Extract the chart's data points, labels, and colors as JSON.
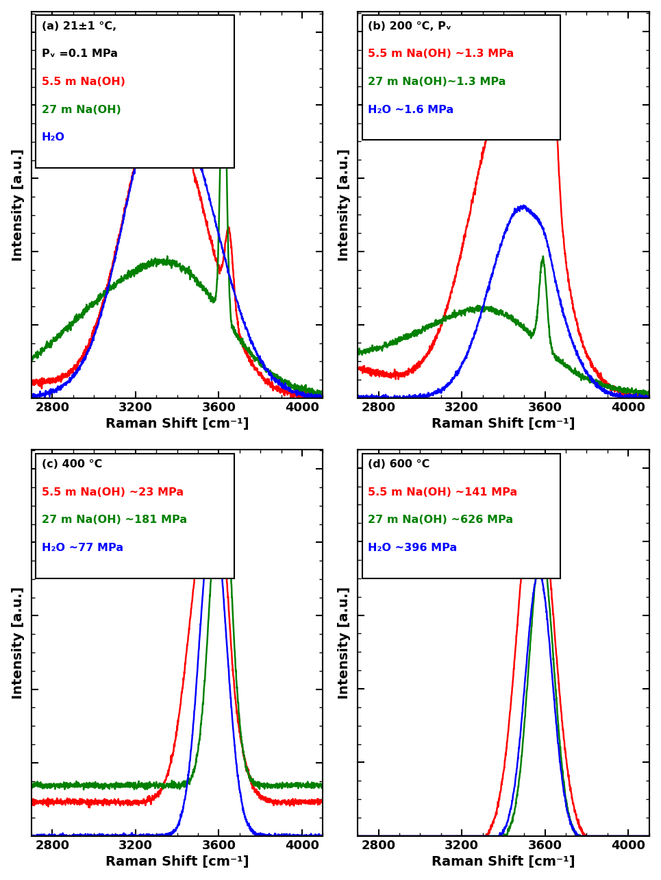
{
  "xlim": [
    2700,
    4100
  ],
  "xlabel": "Raman Shift [cm⁻¹]",
  "ylabel": "Intensity [a.u.]",
  "panels": [
    {
      "label_black": "(a) 21±1 °C,\nPᵥ =0.1 MPa",
      "legend_lines": [
        {
          "text": "5.5 m Na(OH)",
          "color": "red"
        },
        {
          "text": "27 m Na(OH)",
          "color": "green"
        },
        {
          "text": "H₂O",
          "color": "blue"
        }
      ]
    },
    {
      "label_black": "(b) 200 °C, Pᵥ",
      "legend_lines": [
        {
          "text": "5.5 m Na(OH) ~1.3 MPa",
          "color": "red"
        },
        {
          "text": "27 m Na(OH)~1.3 MPa",
          "color": "green"
        },
        {
          "text": "H₂O ~1.6 MPa",
          "color": "blue"
        }
      ]
    },
    {
      "label_black": "(c) 400 °C",
      "legend_lines": [
        {
          "text": "5.5 m Na(OH) ~23 MPa",
          "color": "red"
        },
        {
          "text": "27 m Na(OH) ~181 MPa",
          "color": "green"
        },
        {
          "text": "H₂O ~77 MPa",
          "color": "blue"
        }
      ]
    },
    {
      "label_black": "(d) 600 °C",
      "legend_lines": [
        {
          "text": "5.5 m Na(OH) ~141 MPa",
          "color": "red"
        },
        {
          "text": "27 m Na(OH) ~626 MPa",
          "color": "green"
        },
        {
          "text": "H₂O ~396 MPa",
          "color": "blue"
        }
      ]
    }
  ],
  "xticks": [
    2800,
    3200,
    3600,
    4000
  ],
  "linewidth": 1.8,
  "noise_amp": 0.008
}
